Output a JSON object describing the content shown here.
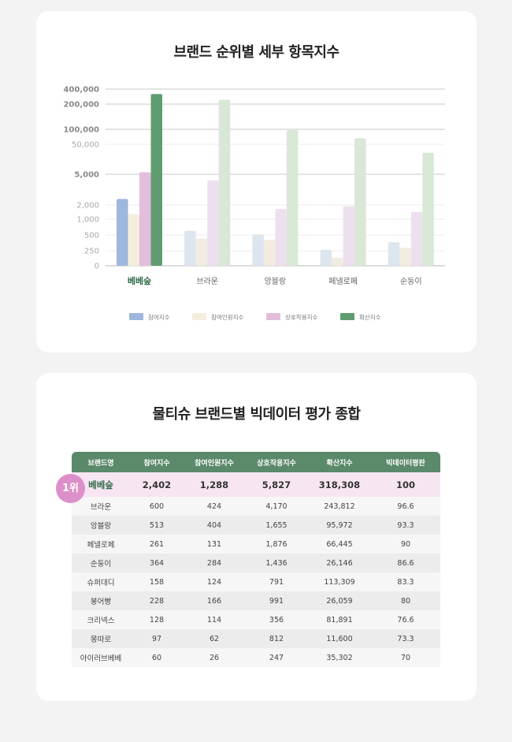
{
  "chart_data": {
    "type": "bar",
    "title": "브랜드 순위별 세부 항목지수",
    "yscale": "log",
    "yticks": [
      "400,000",
      "200,000",
      "100,000",
      "50,000",
      "5,000",
      "2,000",
      "1,000",
      "500",
      "250",
      "0"
    ],
    "ytick_values": [
      400000,
      200000,
      100000,
      50000,
      5000,
      2000,
      1000,
      500,
      250,
      0
    ],
    "major_ticks": [
      400000,
      200000,
      100000,
      5000
    ],
    "categories": [
      "베베숲",
      "브라운",
      "앙블랑",
      "페넬로페",
      "순둥이"
    ],
    "highlight_category": "베베숲",
    "series": [
      {
        "name": "참여지수",
        "values": [
          2402,
          600,
          513,
          261,
          364
        ],
        "color": "#9db7de",
        "fade": "#dde6ef"
      },
      {
        "name": "참여인원지수",
        "values": [
          1288,
          424,
          404,
          131,
          284
        ],
        "color": "#f5eedf",
        "fade": "#f2ece0"
      },
      {
        "name": "상호작용지수",
        "values": [
          5827,
          4170,
          1655,
          1876,
          1436
        ],
        "color": "#e2bedc",
        "fade": "#ede0ee"
      },
      {
        "name": "확산지수",
        "values": [
          318308,
          243812,
          95972,
          66445,
          26146
        ],
        "color": "#5f9c6f",
        "fade": "#d9e7d7"
      }
    ],
    "legend_position": "bottom"
  },
  "table": {
    "title": "물티슈 브랜드별 빅데이터 평가 종합",
    "badge": "1위",
    "headers": [
      "브랜드명",
      "참여지수",
      "참여인원지수",
      "상호작용지수",
      "확산지수",
      "빅데이터평판"
    ],
    "rows": [
      [
        "베베숲",
        "2,402",
        "1,288",
        "5,827",
        "318,308",
        "100"
      ],
      [
        "브라운",
        "600",
        "424",
        "4,170",
        "243,812",
        "96.6"
      ],
      [
        "앙블랑",
        "513",
        "404",
        "1,655",
        "95,972",
        "93.3"
      ],
      [
        "페넬로페",
        "261",
        "131",
        "1,876",
        "66,445",
        "90"
      ],
      [
        "순둥이",
        "364",
        "284",
        "1,436",
        "26,146",
        "86.6"
      ],
      [
        "슈퍼대디",
        "158",
        "124",
        "791",
        "113,309",
        "83.3"
      ],
      [
        "붕어빵",
        "228",
        "166",
        "991",
        "26,059",
        "80"
      ],
      [
        "크리넥스",
        "128",
        "114",
        "356",
        "81,891",
        "76.6"
      ],
      [
        "몽따로",
        "97",
        "62",
        "812",
        "11,600",
        "73.3"
      ],
      [
        "아이러브베베",
        "60",
        "26",
        "247",
        "35,302",
        "70"
      ]
    ]
  }
}
